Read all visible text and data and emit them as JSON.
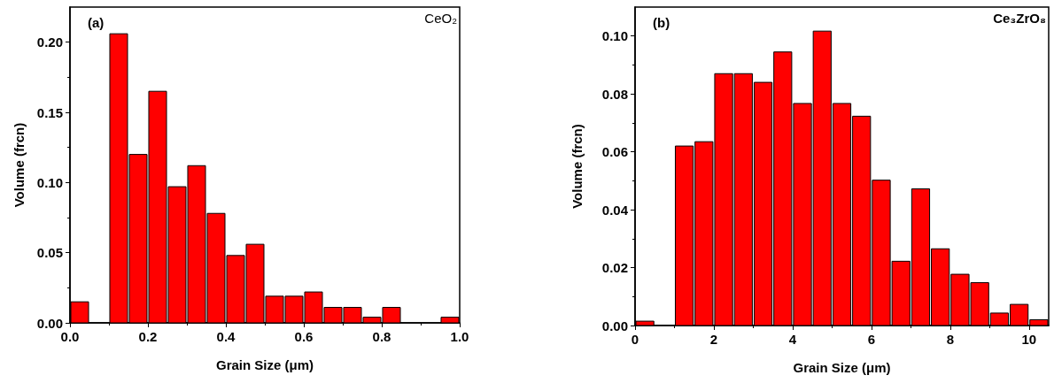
{
  "chart_data": [
    {
      "type": "histogram",
      "xlabel": "Grain Size (μm)",
      "ylabel": "Volume (frcn)",
      "annotations": [
        "(a)",
        "CeO₂"
      ],
      "color": "#ff0000",
      "bins": [
        0,
        0.05,
        0.1,
        0.15,
        0.2,
        0.25,
        0.3,
        0.35,
        0.4,
        0.45,
        0.5,
        0.55,
        0.6,
        0.65,
        0.7,
        0.75,
        0.8,
        0.85,
        0.9,
        0.95,
        1.0
      ],
      "values": [
        0.015,
        0,
        0.206,
        0.12,
        0.165,
        0.097,
        0.112,
        0.078,
        0.048,
        0.056,
        0.019,
        0.019,
        0.022,
        0.011,
        0.011,
        0.004,
        0.011,
        0,
        0,
        0.004
      ],
      "xlim": [
        0,
        1.0
      ],
      "xticks": [
        {
          "value": 0,
          "label": "0.0"
        },
        0.2,
        0.4,
        0.6,
        0.8,
        {
          "value": 1,
          "label": "1.0"
        }
      ],
      "ylim": [
        0,
        0.225
      ],
      "yticks": [
        {
          "value": 0,
          "label": "0.00"
        },
        0.05,
        {
          "value": 0.1,
          "label": "0.10"
        },
        0.15,
        {
          "value": 0.2,
          "label": "0.20"
        }
      ],
      "grid": false
    },
    {
      "type": "histogram",
      "xlabel": "Grain Size (μm)",
      "ylabel": "Volume (frcn)",
      "annotations": [
        "(b)",
        "Ce₃ZrO₈"
      ],
      "color": "#ff0000",
      "bins": [
        0,
        0.5,
        1,
        1.5,
        2,
        2.5,
        3,
        3.5,
        4,
        4.5,
        5,
        5.5,
        6,
        6.5,
        7,
        7.5,
        8,
        8.5,
        9,
        9.5,
        10,
        10.5
      ],
      "values": [
        0.0015,
        0,
        0.062,
        0.0635,
        0.087,
        0.087,
        0.084,
        0.0945,
        0.0767,
        0.1017,
        0.0767,
        0.0723,
        0.0502,
        0.0222,
        0.0472,
        0.0265,
        0.0177,
        0.0148,
        0.0043,
        0.0073,
        0.002
      ],
      "xlim": [
        0,
        10.5
      ],
      "xticks": [
        0,
        2,
        4,
        6,
        8,
        10
      ],
      "ylim": [
        0,
        0.11
      ],
      "yticks": [
        {
          "value": 0,
          "label": "0.00"
        },
        0.02,
        0.04,
        0.06,
        0.08,
        {
          "value": 0.1,
          "label": "0.10"
        }
      ],
      "grid": false
    }
  ]
}
